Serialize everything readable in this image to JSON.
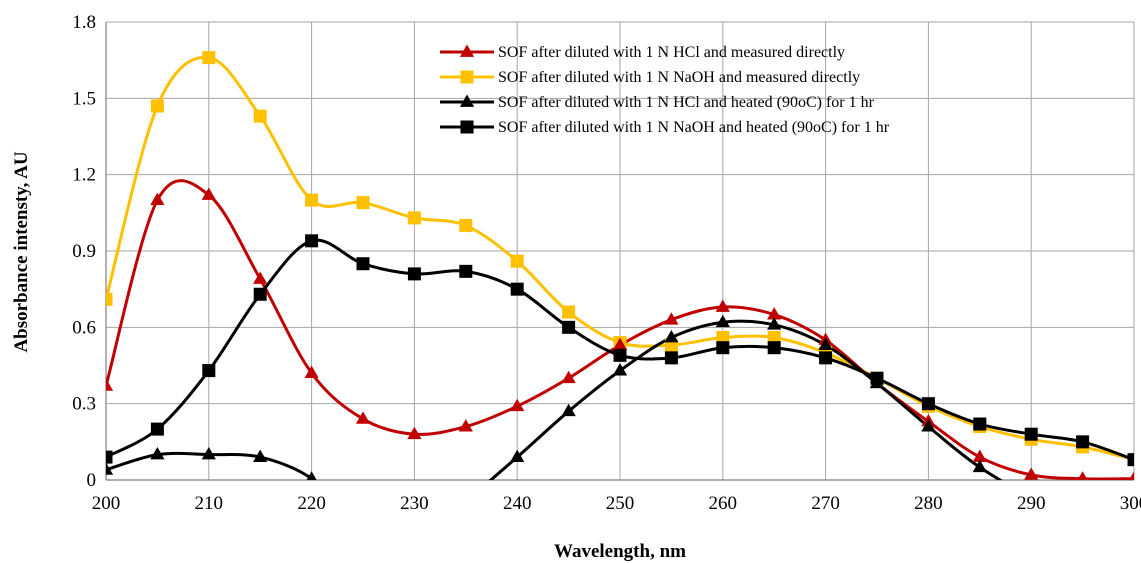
{
  "chart_data": {
    "type": "line",
    "title": "",
    "xlabel": "Wavelength, nm",
    "ylabel": "Absorbance intensty, AU",
    "xlim": [
      200,
      300
    ],
    "ylim": [
      0,
      1.8
    ],
    "xticks": [
      200,
      210,
      220,
      230,
      240,
      250,
      260,
      270,
      280,
      290,
      300
    ],
    "yticks": [
      0,
      0.3,
      0.6,
      0.9,
      1.2,
      1.5,
      1.8
    ],
    "xtick_labels": [
      "200",
      "210",
      "220",
      "230",
      "240",
      "250",
      "260",
      "270",
      "280",
      "290",
      "300"
    ],
    "ytick_labels": [
      "0",
      "0.3",
      "0.6",
      "0.9",
      "1.2",
      "1.5",
      "1.8"
    ],
    "grid": true,
    "legend_position": "top-right",
    "x": [
      200,
      205,
      210,
      215,
      220,
      225,
      230,
      235,
      240,
      245,
      250,
      255,
      260,
      265,
      270,
      275,
      280,
      285,
      290,
      295,
      300
    ],
    "series": [
      {
        "name": "SOF after diluted with 1 N HCl and measured directly",
        "color": "#c00000",
        "marker": "triangle",
        "values": [
          0.37,
          1.1,
          1.12,
          0.79,
          0.42,
          0.24,
          0.18,
          0.21,
          0.29,
          0.4,
          0.53,
          0.63,
          0.68,
          0.65,
          0.55,
          0.38,
          0.23,
          0.09,
          0.02,
          0.005,
          0.005
        ]
      },
      {
        "name": "SOF after diluted with 1 N NaOH and measured directly",
        "color": "#ffc000",
        "marker": "square",
        "values": [
          0.71,
          1.47,
          1.66,
          1.43,
          1.1,
          1.09,
          1.03,
          1.0,
          0.86,
          0.66,
          0.54,
          0.53,
          0.56,
          0.56,
          0.5,
          0.4,
          0.29,
          0.21,
          0.16,
          0.13,
          0.08
        ]
      },
      {
        "name": "SOF after diluted with 1 N HCl and heated (90oC) for 1 hr",
        "color": "#000000",
        "marker": "triangle",
        "values": [
          0.04,
          0.1,
          0.1,
          0.09,
          0.005,
          null,
          null,
          null,
          0.09,
          0.27,
          0.43,
          0.56,
          0.62,
          0.61,
          0.53,
          0.38,
          0.21,
          0.05,
          null,
          null,
          null
        ]
      },
      {
        "name": "SOF after diluted with 1 N NaOH and heated (90oC) for 1 hr",
        "color": "#000000",
        "marker": "square",
        "values": [
          0.09,
          0.2,
          0.43,
          0.73,
          0.94,
          0.85,
          0.81,
          0.82,
          0.75,
          0.6,
          0.49,
          0.48,
          0.52,
          0.52,
          0.48,
          0.4,
          0.3,
          0.22,
          0.18,
          0.15,
          0.08
        ]
      }
    ]
  }
}
